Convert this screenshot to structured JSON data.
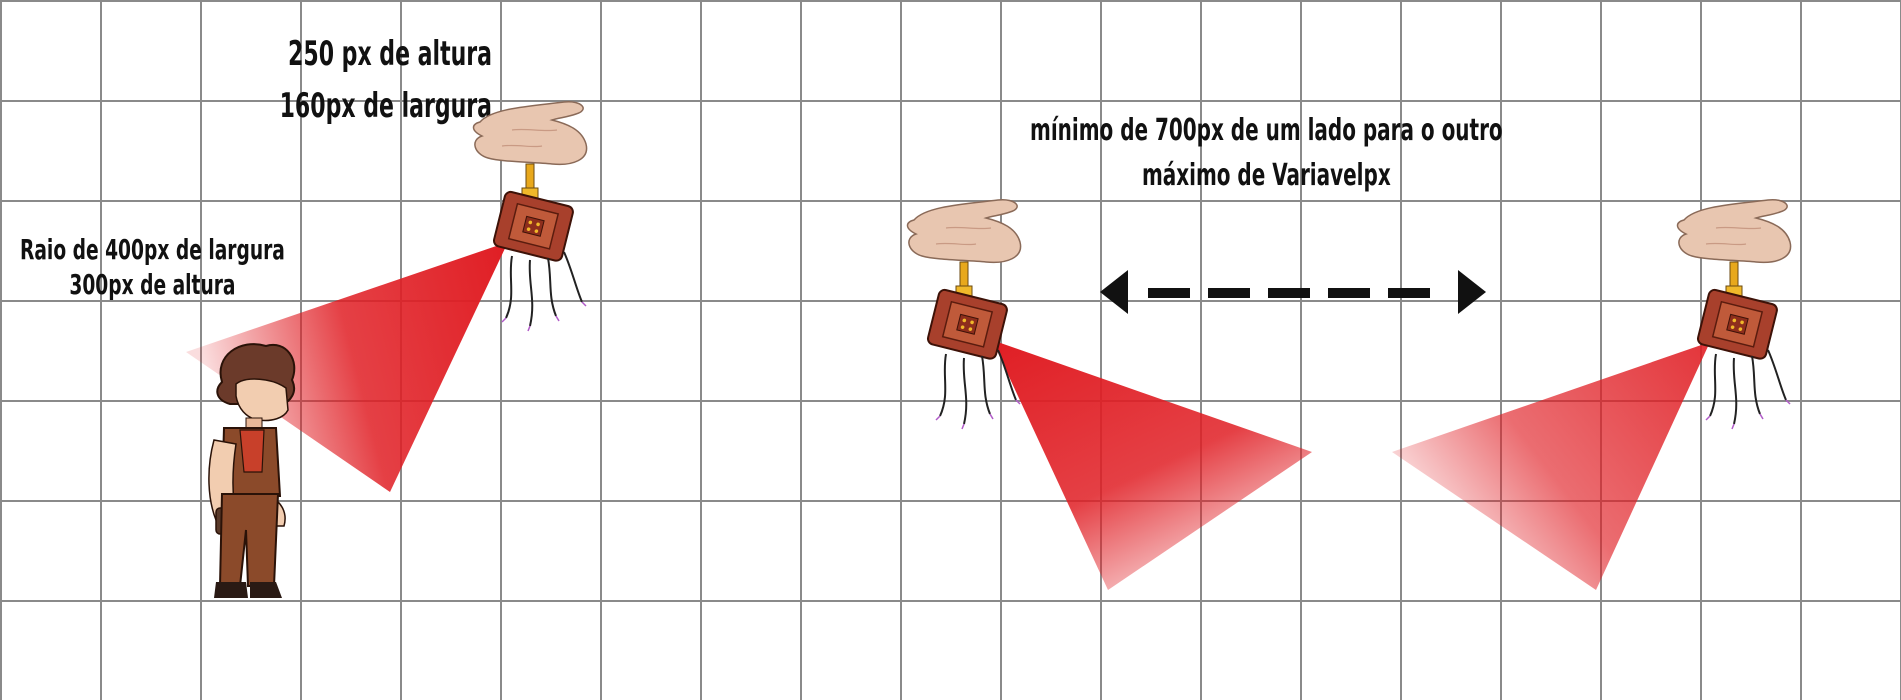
{
  "labels": {
    "dims_line1": "250 px de altura",
    "dims_line2": "160px de largura",
    "radius_line1": "Raio de 400px de largura",
    "radius_line2": "300px de altura",
    "distance_line1": "mínimo de 700px de um lado para o outro",
    "distance_line2": "máximo de Variavelpx"
  },
  "colors": {
    "beam": "#e01e24",
    "grid": "#8a8a8a",
    "drone_body": "#a8402c",
    "hand": "#e8c6b0"
  }
}
